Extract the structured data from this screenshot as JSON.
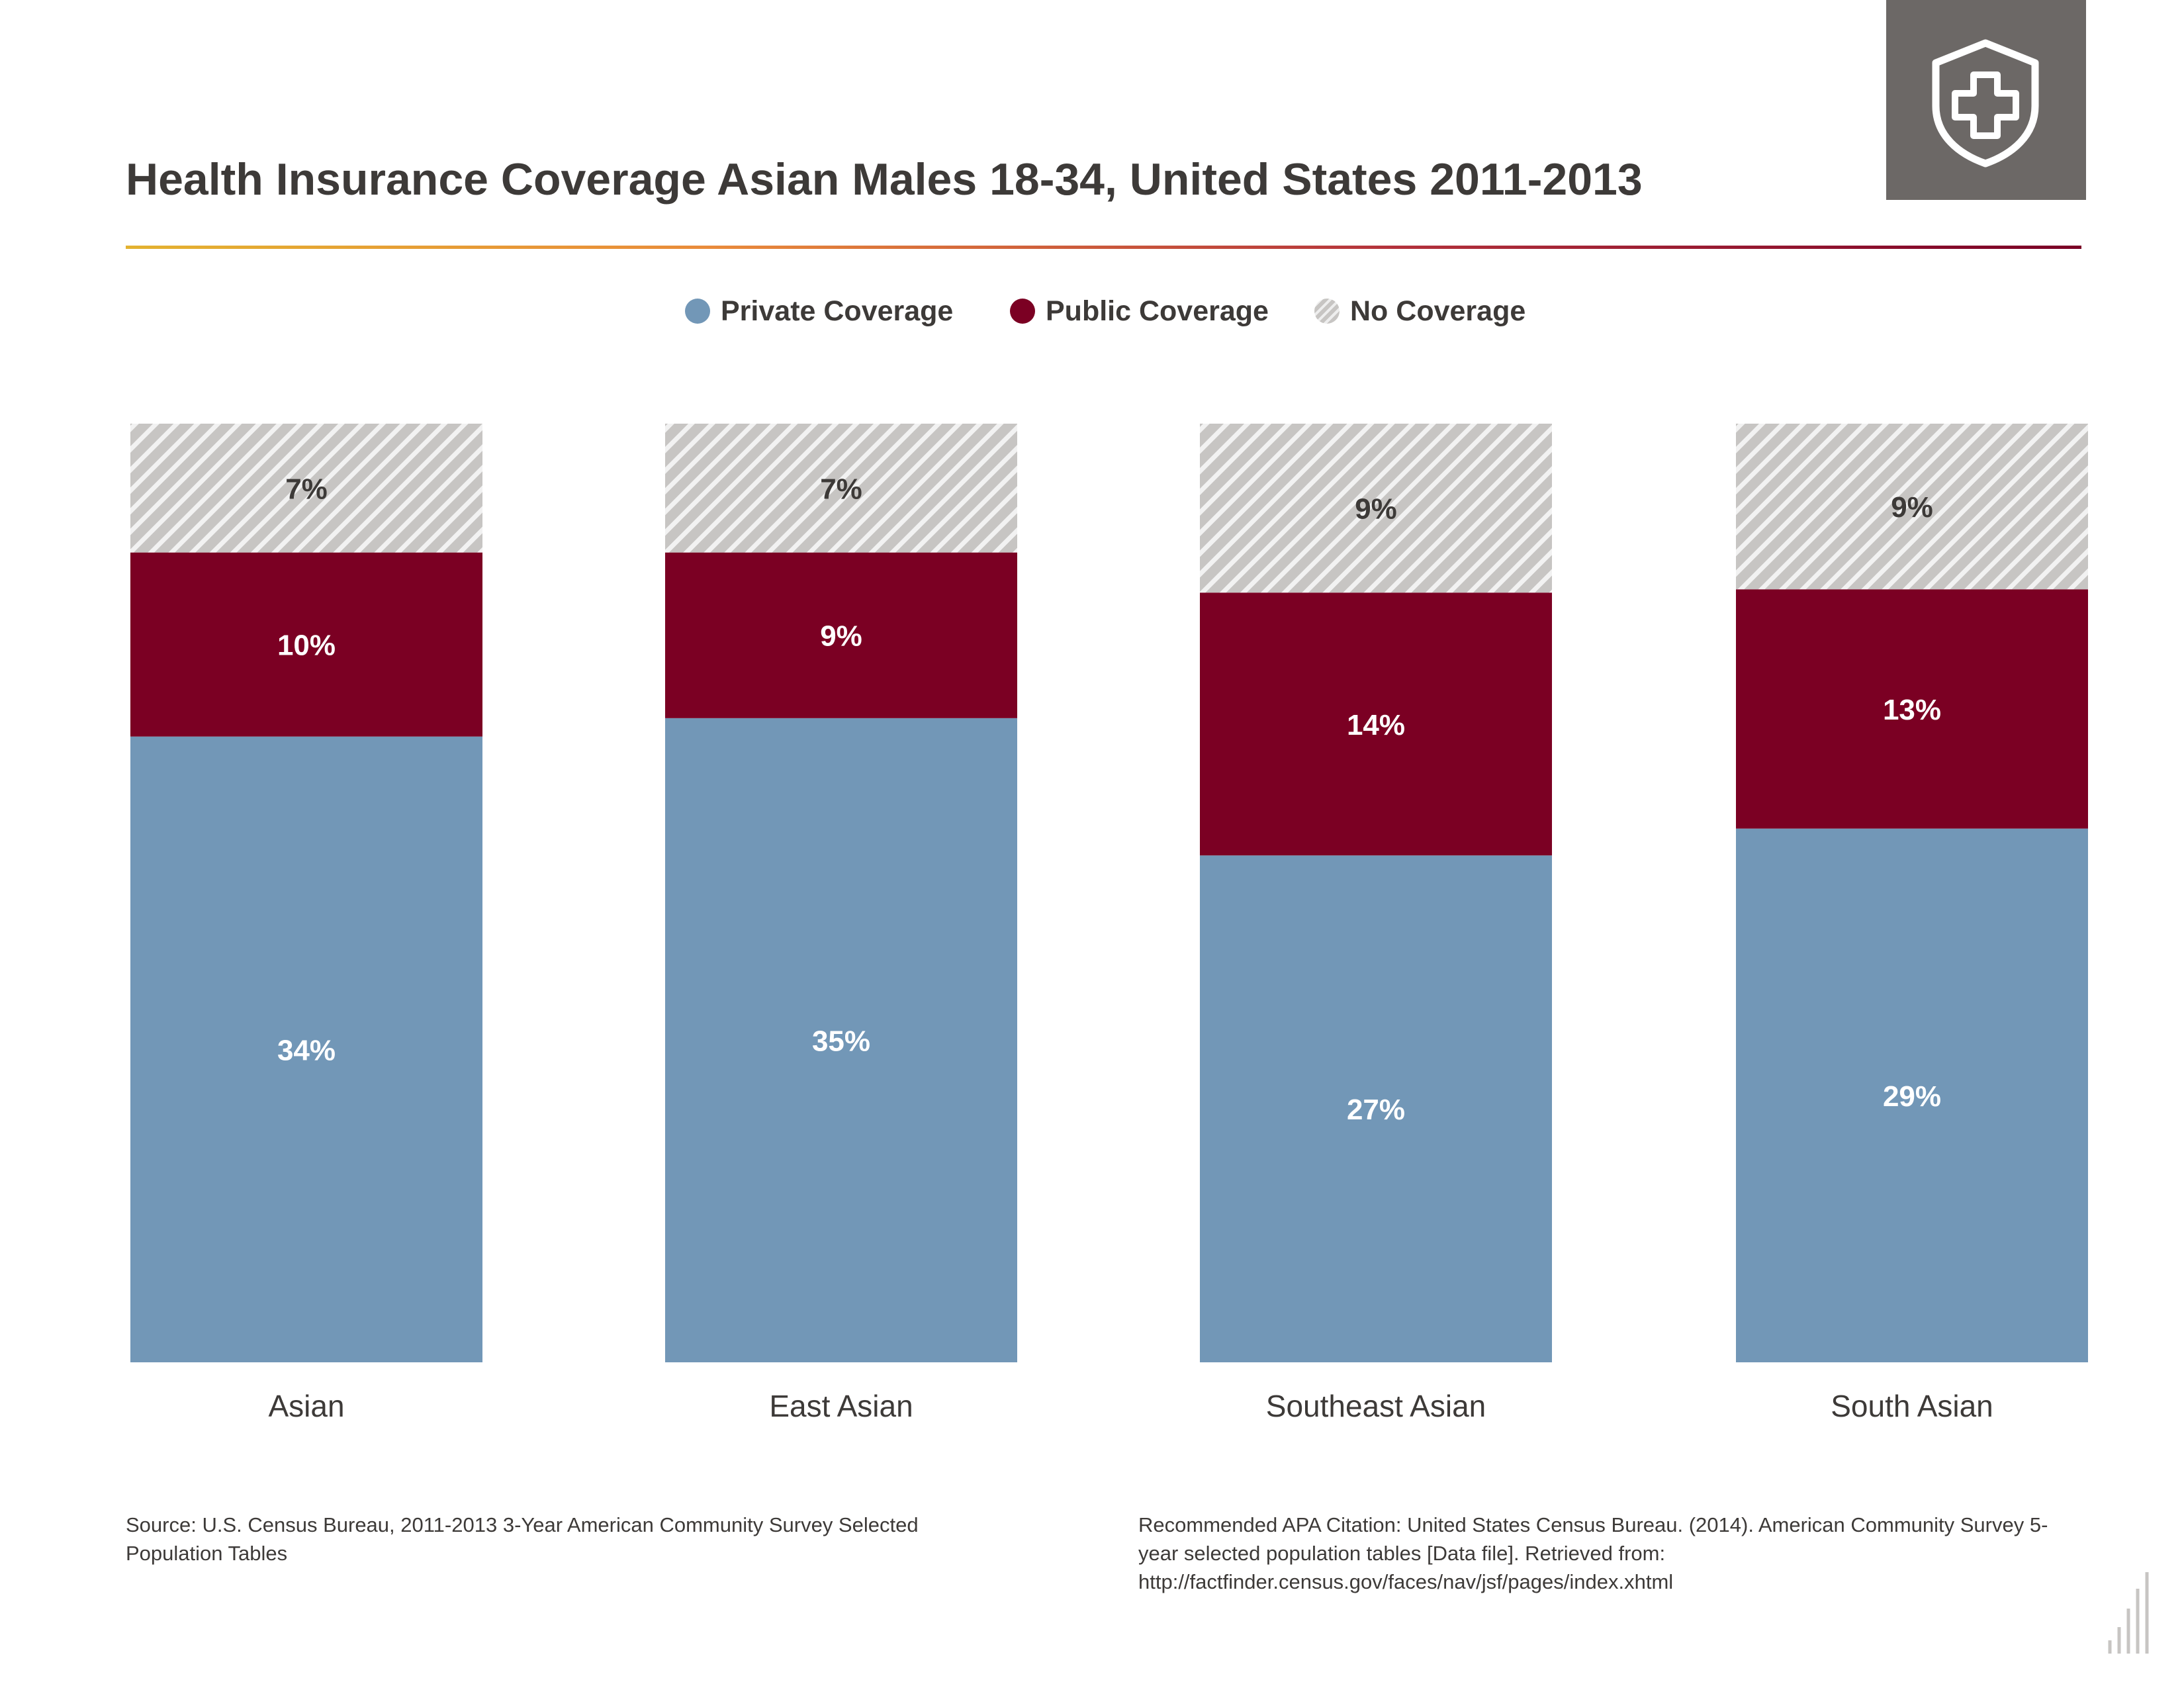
{
  "header": {
    "title": "Health Insurance Coverage Asian Males 18-34, United States 2011-2013",
    "badge_icon": "shield-cross-icon"
  },
  "legend": {
    "items": [
      {
        "label": "Private Coverage",
        "color": "#7297b7"
      },
      {
        "label": "Public Coverage",
        "color": "#7b0023"
      },
      {
        "label": "No Coverage",
        "color": "hatched-gray"
      }
    ]
  },
  "chart_data": {
    "type": "bar",
    "stacked": true,
    "normalized": true,
    "categories": [
      "Asian",
      "East Asian",
      "Southeast Asian",
      "South Asian"
    ],
    "series": [
      {
        "name": "Private Coverage",
        "color": "#7297b7",
        "values": [
          34,
          35,
          27,
          29
        ],
        "labels": [
          "34%",
          "35%",
          "27%",
          "29%"
        ]
      },
      {
        "name": "Public Coverage",
        "color": "#7b0023",
        "values": [
          10,
          9,
          14,
          13
        ],
        "labels": [
          "10%",
          "9%",
          "14%",
          "13%"
        ]
      },
      {
        "name": "No Coverage",
        "color": "#c7c5c3",
        "pattern": "hatched",
        "values": [
          7,
          7,
          9,
          9
        ],
        "labels": [
          "7%",
          "7%",
          "9%",
          "9%"
        ]
      }
    ],
    "title": "Health Insurance Coverage Asian Males 18-34, United States 2011-2013",
    "xlabel": "",
    "ylabel": "",
    "grid": false,
    "legend_position": "top-center"
  },
  "footer": {
    "source": "Source: U.S. Census Bureau, 2011-2013 3-Year American Community Survey Selected Population Tables",
    "citation": "Recommended APA Citation: United States Census Bureau. (2014). American Community Survey 5-year selected population tables [Data file]. Retrieved from: http://factfinder.census.gov/faces/nav/jsf/pages/index.xhtml"
  }
}
